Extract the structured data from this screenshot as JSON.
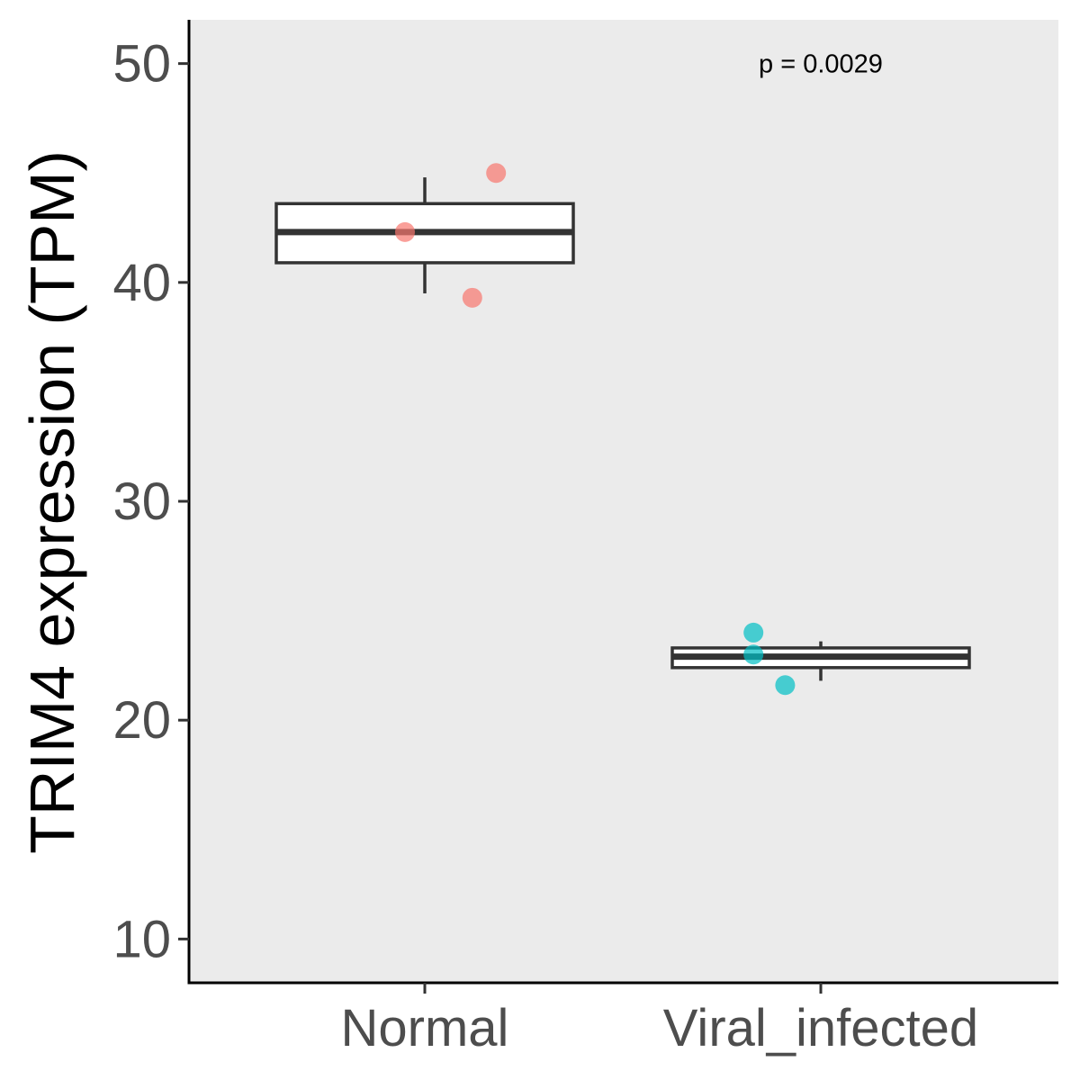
{
  "chart_data": {
    "type": "box",
    "title": "",
    "xlabel": "",
    "ylabel": "TRIM4 expression (TPM)",
    "ylim": [
      8,
      52
    ],
    "yticks": [
      10,
      20,
      30,
      40,
      50
    ],
    "categories": [
      "Normal",
      "Viral_infected"
    ],
    "colors": {
      "Normal": "#F8766D",
      "Viral_infected": "#00BFC4"
    },
    "boxes": [
      {
        "category": "Normal",
        "min": 39.5,
        "q1": 40.9,
        "median": 42.3,
        "q3": 43.6,
        "max": 44.8
      },
      {
        "category": "Viral_infected",
        "min": 21.8,
        "q1": 22.4,
        "median": 22.9,
        "q3": 23.3,
        "max": 23.6
      }
    ],
    "points": [
      {
        "category": "Normal",
        "y": 45.0,
        "jitter": 0.18
      },
      {
        "category": "Normal",
        "y": 42.3,
        "jitter": -0.05
      },
      {
        "category": "Normal",
        "y": 39.3,
        "jitter": 0.12
      },
      {
        "category": "Viral_infected",
        "y": 24.0,
        "jitter": -0.17
      },
      {
        "category": "Viral_infected",
        "y": 23.0,
        "jitter": -0.17
      },
      {
        "category": "Viral_infected",
        "y": 21.6,
        "jitter": -0.09
      }
    ],
    "annotation": {
      "text": "p =  0.0029",
      "x_category": "Viral_infected",
      "y": 50
    },
    "panel_background": "#EBEBEB",
    "grid": false,
    "legend": "none"
  }
}
